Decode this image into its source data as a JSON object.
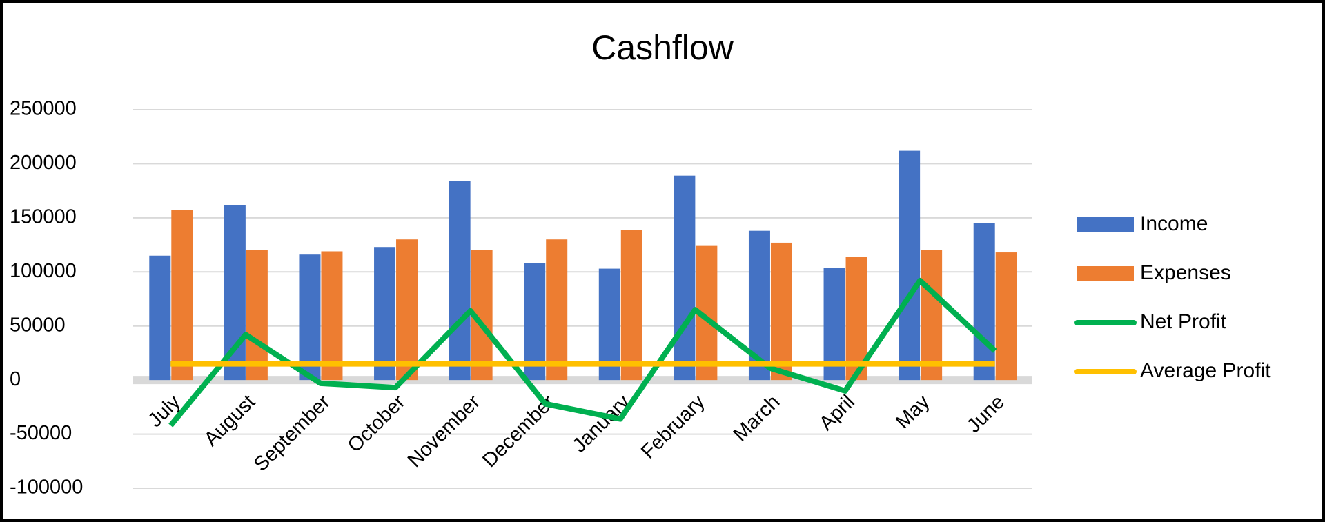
{
  "chart_data": {
    "type": "bar",
    "title": "Cashflow",
    "categories": [
      "July",
      "August",
      "September",
      "October",
      "November",
      "December",
      "January",
      "February",
      "March",
      "April",
      "May",
      "June"
    ],
    "series": [
      {
        "name": "Income",
        "type": "bar",
        "color": "#4472c4",
        "values": [
          115000,
          162000,
          116000,
          123000,
          184000,
          108000,
          103000,
          189000,
          138000,
          104000,
          212000,
          145000
        ]
      },
      {
        "name": "Expenses",
        "type": "bar",
        "color": "#ed7d31",
        "values": [
          157000,
          120000,
          119000,
          130000,
          120000,
          130000,
          139000,
          124000,
          127000,
          114000,
          120000,
          118000
        ]
      },
      {
        "name": "Net Profit",
        "type": "line",
        "color": "#00b050",
        "values": [
          -42000,
          42000,
          -3000,
          -7000,
          64000,
          -22000,
          -36000,
          65000,
          11000,
          -10000,
          92000,
          27000
        ]
      },
      {
        "name": "Average Profit",
        "type": "line",
        "color": "#ffc000",
        "values": [
          15000,
          15000,
          15000,
          15000,
          15000,
          15000,
          15000,
          15000,
          15000,
          15000,
          15000,
          15000
        ]
      }
    ],
    "ylim": [
      -100000,
      250000
    ],
    "yticks": [
      -100000,
      -50000,
      0,
      50000,
      100000,
      150000,
      200000,
      250000
    ],
    "grid": true,
    "legend": "right"
  }
}
